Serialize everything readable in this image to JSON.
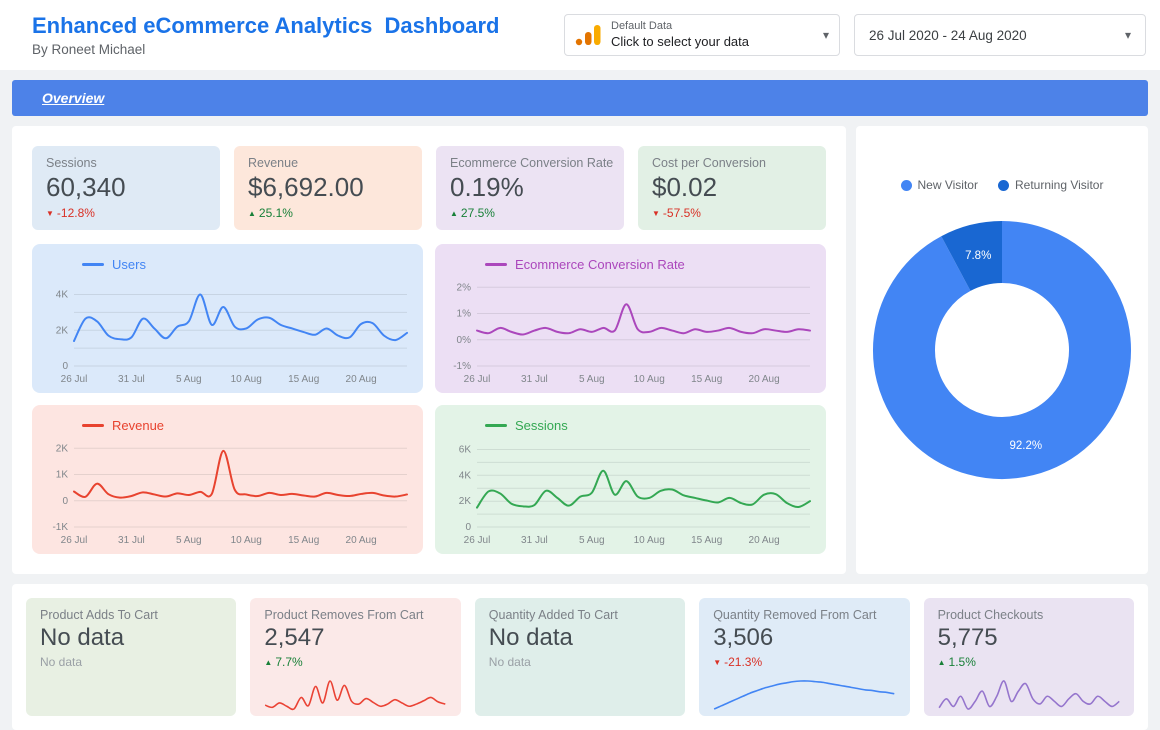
{
  "header": {
    "title": "Enhanced eCommerce Analytics  Dashboard",
    "subtitle": "By Roneet Michael",
    "data_selector": {
      "label": "Default Data",
      "hint": "Click to select your data"
    },
    "date_range": "26 Jul 2020 - 24 Aug 2020"
  },
  "nav": {
    "overview_label": "Overview"
  },
  "colors": {
    "title": "#1a73e8",
    "nav": "#4d82e8",
    "positive": "#188038",
    "negative": "#d93025"
  },
  "scorecards": [
    {
      "label": "Sessions",
      "value": "60,340",
      "delta": "-12.8%",
      "direction": "down",
      "bg": "#dfeaf5"
    },
    {
      "label": "Revenue",
      "value": "$6,692.00",
      "delta": "25.1%",
      "direction": "up",
      "bg": "#fde7db"
    },
    {
      "label": "Ecommerce Conversion Rate",
      "value": "0.19%",
      "delta": "27.5%",
      "direction": "up",
      "bg": "#ece3f3"
    },
    {
      "label": "Cost per Conversion",
      "value": "$0.02",
      "delta": "-57.5%",
      "direction": "down",
      "bg": "#e2f0e5"
    }
  ],
  "chart_data": [
    {
      "type": "line",
      "title": "Users",
      "color": "#4285f4",
      "bg": "#dbe9fa",
      "x_labels": [
        "26 Jul",
        "31 Jul",
        "5 Aug",
        "10 Aug",
        "15 Aug",
        "20 Aug"
      ],
      "x_positions": [
        0,
        5,
        10,
        15,
        20,
        25
      ],
      "y_ticks": [
        [
          4000,
          "4K"
        ],
        [
          2000,
          "2K"
        ],
        [
          0,
          "0"
        ]
      ],
      "y_grid": [
        0,
        1000,
        2000,
        3000,
        4000
      ],
      "ymin": 0,
      "ymax": 4700,
      "values": [
        1400,
        2650,
        2500,
        1700,
        1500,
        1600,
        2650,
        2100,
        1550,
        2200,
        2500,
        4000,
        2300,
        3300,
        2200,
        2100,
        2600,
        2700,
        2300,
        2100,
        1900,
        1750,
        2100,
        1700,
        1600,
        2350,
        2400,
        1700,
        1450,
        1850
      ]
    },
    {
      "type": "line",
      "title": "Ecommerce Conversion Rate",
      "color": "#ab47bc",
      "bg": "#ecdff4",
      "x_labels": [
        "26 Jul",
        "31 Jul",
        "5 Aug",
        "10 Aug",
        "15 Aug",
        "20 Aug"
      ],
      "x_positions": [
        0,
        5,
        10,
        15,
        20,
        25
      ],
      "y_ticks": [
        [
          2,
          "2%"
        ],
        [
          1,
          "1%"
        ],
        [
          0,
          "0%"
        ],
        [
          -1,
          "-1%"
        ]
      ],
      "y_grid": [
        -1,
        0,
        1,
        2
      ],
      "ymin": -1,
      "ymax": 2.2,
      "values": [
        0.35,
        0.25,
        0.45,
        0.3,
        0.2,
        0.35,
        0.45,
        0.3,
        0.25,
        0.4,
        0.3,
        0.45,
        0.35,
        1.35,
        0.4,
        0.3,
        0.45,
        0.35,
        0.25,
        0.4,
        0.3,
        0.35,
        0.45,
        0.3,
        0.25,
        0.4,
        0.35,
        0.3,
        0.4,
        0.35
      ]
    },
    {
      "type": "line",
      "title": "Revenue",
      "color": "#e8432f",
      "bg": "#fde5e1",
      "x_labels": [
        "26 Jul",
        "31 Jul",
        "5 Aug",
        "10 Aug",
        "15 Aug",
        "20 Aug"
      ],
      "x_positions": [
        0,
        5,
        10,
        15,
        20,
        25
      ],
      "y_ticks": [
        [
          2000,
          "2K"
        ],
        [
          1000,
          "1K"
        ],
        [
          0,
          "0"
        ],
        [
          -1000,
          "-1K"
        ]
      ],
      "y_grid": [
        -1000,
        0,
        1000,
        2000
      ],
      "ymin": -1000,
      "ymax": 2200,
      "values": [
        350,
        150,
        650,
        250,
        120,
        180,
        320,
        240,
        160,
        280,
        220,
        340,
        260,
        1900,
        420,
        240,
        180,
        300,
        220,
        260,
        200,
        160,
        300,
        220,
        180,
        260,
        300,
        200,
        160,
        240
      ]
    },
    {
      "type": "line",
      "title": "Sessions",
      "color": "#34a853",
      "bg": "#e3f3e7",
      "x_labels": [
        "26 Jul",
        "31 Jul",
        "5 Aug",
        "10 Aug",
        "15 Aug",
        "20 Aug"
      ],
      "x_positions": [
        0,
        5,
        10,
        15,
        20,
        25
      ],
      "y_ticks": [
        [
          6000,
          "6K"
        ],
        [
          4000,
          "4K"
        ],
        [
          2000,
          "2K"
        ],
        [
          0,
          "0"
        ]
      ],
      "y_grid": [
        0,
        1000,
        2000,
        3000,
        4000,
        5000,
        6000
      ],
      "ymin": 0,
      "ymax": 6500,
      "values": [
        1500,
        2750,
        2600,
        1800,
        1600,
        1700,
        2800,
        2250,
        1650,
        2350,
        2650,
        4350,
        2500,
        3550,
        2350,
        2250,
        2800,
        2900,
        2450,
        2250,
        2050,
        1900,
        2250,
        1850,
        1750,
        2500,
        2550,
        1850,
        1550,
        2000
      ]
    },
    {
      "type": "donut",
      "slices": [
        {
          "label": "New Visitor",
          "value": 92.2,
          "display": "92.2%",
          "color": "#4285f4"
        },
        {
          "label": "Returning Visitor",
          "value": 7.8,
          "display": "7.8%",
          "color": "#1967d2"
        }
      ]
    },
    {
      "type": "sparkline",
      "color": "#ea4335",
      "values": [
        2,
        1.6,
        2.4,
        1.8,
        1.3,
        3.4,
        1.9,
        5.4,
        2.4,
        6.4,
        2.9,
        5.6,
        2.7,
        2.2,
        3.2,
        2.5,
        1.8,
        2.2,
        3,
        2.4,
        1.8,
        2.2,
        2.8,
        3.4,
        2.6,
        2.2
      ]
    },
    {
      "type": "sparkline",
      "color": "#4285f4",
      "values": [
        0.6,
        1.1,
        1.6,
        2.1,
        2.6,
        3.1,
        3.5,
        3.9,
        4.2,
        4.5,
        4.7,
        4.9,
        5,
        5,
        4.9,
        4.8,
        4.6,
        4.4,
        4.2,
        4,
        3.8,
        3.6,
        3.5,
        3.3,
        3.2,
        3
      ]
    },
    {
      "type": "sparkline",
      "color": "#9575cd",
      "values": [
        2.6,
        3.3,
        2.7,
        3.5,
        2.5,
        3.1,
        3.9,
        2.7,
        3.5,
        4.7,
        3.1,
        3.9,
        4.5,
        3.3,
        2.9,
        3.5,
        3.1,
        2.7,
        3.3,
        3.7,
        3.1,
        2.9,
        3.5,
        3.1,
        2.7,
        3.1
      ]
    }
  ],
  "bottom_cards": [
    {
      "label": "Product Adds To Cart",
      "value": "No data",
      "delta": "No data",
      "direction": "none",
      "bg": "#e8f0e3"
    },
    {
      "label": "Product Removes From Cart",
      "value": "2,547",
      "delta": "7.7%",
      "direction": "up",
      "bg": "#fbe9e8"
    },
    {
      "label": "Quantity Added To Cart",
      "value": "No data",
      "delta": "No data",
      "direction": "none",
      "bg": "#dfeeea"
    },
    {
      "label": "Quantity Removed From Cart",
      "value": "3,506",
      "delta": "-21.3%",
      "direction": "down",
      "bg": "#dfebf7"
    },
    {
      "label": "Product Checkouts",
      "value": "5,775",
      "delta": "1.5%",
      "direction": "up",
      "bg": "#eae3f2"
    }
  ]
}
